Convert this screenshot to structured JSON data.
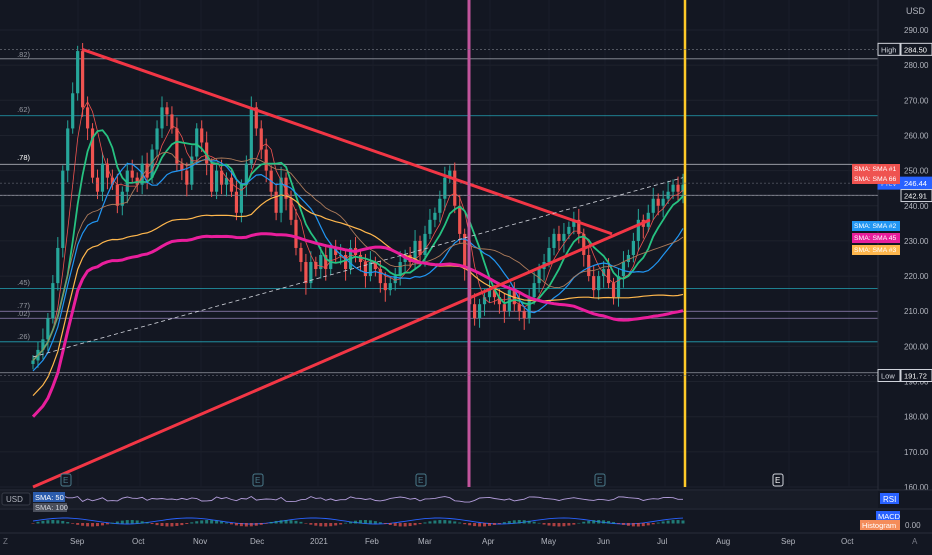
{
  "chart_data": {
    "type": "candlestick",
    "currency": "USD",
    "x_ticks": [
      "Sep",
      "Oct",
      "Nov",
      "Dec",
      "2021",
      "Feb",
      "Mar",
      "Apr",
      "May",
      "Jun",
      "Jul",
      "Aug",
      "Sep",
      "Oct"
    ],
    "y_ticks": [
      160,
      170,
      180,
      190,
      200,
      210,
      220,
      230,
      240,
      250,
      260,
      270,
      280,
      290
    ],
    "ylim": [
      158,
      296
    ],
    "price_labels": [
      {
        "text": "High",
        "value": "284.50"
      },
      {
        "text": "Prev",
        "value": "246.44"
      },
      {
        "text": "",
        "value": "242.91"
      },
      {
        "text": "Low",
        "value": "191.72"
      }
    ],
    "sma_labels": [
      "SMA: SMA #1",
      "SMA: SMA 66",
      "SMA: SMA #2",
      "SMA: SMA 45",
      "SMA: SMA #3"
    ],
    "fib_labels": [
      ".82)",
      ".62)",
      ".78)",
      ".45)",
      ".77)",
      ".02)",
      ".26)"
    ],
    "horizontal_levels": [
      281.8,
      265.6,
      251.8,
      243,
      216.5,
      210,
      208,
      201.3,
      192.5
    ],
    "earnings_markers": [
      "E",
      "E",
      "E",
      "E",
      "E"
    ],
    "close_prices": [
      196,
      199,
      202,
      208,
      218,
      228,
      250,
      262,
      272,
      284,
      268,
      262,
      248,
      244,
      252,
      248,
      246,
      240,
      244,
      250,
      248,
      246,
      252,
      248,
      256,
      262,
      268,
      266,
      262,
      252,
      250,
      246,
      254,
      262,
      258,
      252,
      244,
      250,
      246,
      248,
      244,
      238,
      246,
      252,
      268,
      262,
      256,
      250,
      244,
      238,
      248,
      242,
      236,
      228,
      224,
      218,
      224,
      222,
      226,
      222,
      228,
      226,
      226,
      222,
      228,
      226,
      224,
      220,
      224,
      222,
      218,
      216,
      218,
      220,
      224,
      226,
      224,
      230,
      226,
      232,
      236,
      238,
      242,
      248,
      250,
      240,
      232,
      222,
      212,
      208,
      212,
      214,
      216,
      214,
      212,
      210,
      216,
      212,
      210,
      208,
      214,
      218,
      222,
      224,
      228,
      232,
      230,
      232,
      234,
      236,
      232,
      226,
      220,
      216,
      220,
      222,
      218,
      214,
      220,
      224,
      226,
      230,
      236,
      234,
      238,
      242,
      240,
      242,
      244,
      246,
      244,
      246
    ],
    "indicators": {
      "rsi": {
        "label": "RSI",
        "sma_label": "SMA: 50"
      },
      "macd": {
        "label": "MACD",
        "sma_label": "SMA: 100",
        "histogram_label": "Histogram",
        "value": "0.00"
      }
    },
    "trendlines": [
      "descending resistance",
      "ascending support",
      "dashed channel"
    ],
    "vertical_markers": [
      "Mar",
      "Jul"
    ]
  },
  "ui": {
    "currency_label": "USD",
    "bottom_left_letter": "Z",
    "bottom_right_letter": "A",
    "rsi_label": "RSI",
    "macd_label": "MACD",
    "histogram_label": "Histogram",
    "macd_value": "0.00",
    "sma50_label": "SMA: 50",
    "sma100_label": "SMA: 100",
    "usd_toggle": "USD"
  }
}
